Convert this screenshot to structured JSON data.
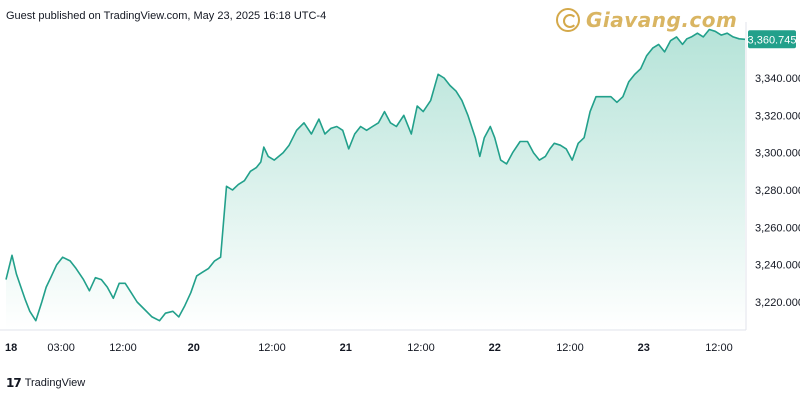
{
  "header": {
    "publisher": "Guest published on TradingView.com, May 23, 2025 16:18 UTC-4"
  },
  "watermark": {
    "brand": "Giavang.com",
    "logo_icon": "giavang-logo-icon"
  },
  "footer": {
    "brand": "TradingView",
    "logo_icon": "tradingview-logo-icon",
    "logo_glyph": "17"
  },
  "colors": {
    "line": "#22a08b",
    "fill_top": "#b5e3d8",
    "fill_bottom": "#ffffff",
    "badge": "#22a08b",
    "axis_text": "#131722",
    "watermark": "#d9b562"
  },
  "chart_data": {
    "type": "area",
    "ylim": [
      3205,
      3370
    ],
    "xlim": [
      0,
      5.0
    ],
    "x_ticks": [
      {
        "x": 0,
        "label": "18"
      },
      {
        "x": 0.37,
        "label": "03:00"
      },
      {
        "x": 0.785,
        "label": "12:00"
      },
      {
        "x": 1.26,
        "label": "20"
      },
      {
        "x": 1.785,
        "label": "12:00"
      },
      {
        "x": 2.28,
        "label": "21"
      },
      {
        "x": 2.785,
        "label": "12:00"
      },
      {
        "x": 3.28,
        "label": "22"
      },
      {
        "x": 3.785,
        "label": "12:00"
      },
      {
        "x": 4.28,
        "label": "23"
      },
      {
        "x": 4.785,
        "label": "12:00"
      }
    ],
    "y_ticks": [
      3220,
      3240,
      3260,
      3280,
      3300,
      3320,
      3340
    ],
    "y_tick_labels": [
      "3,220.000",
      "3,240.000",
      "3,260.000",
      "3,280.000",
      "3,300.000",
      "3,320.000",
      "3,340.000"
    ],
    "last_value": 3360.745,
    "last_value_label": "3,360.745",
    "series": [
      {
        "x": [
          0,
          0.04,
          0.07,
          0.1,
          0.13,
          0.16,
          0.2,
          0.24,
          0.27,
          0.3,
          0.34,
          0.38,
          0.43,
          0.47,
          0.52,
          0.56,
          0.6,
          0.64,
          0.68,
          0.72,
          0.76,
          0.8,
          0.84,
          0.88,
          0.93,
          0.98,
          1.03,
          1.07,
          1.12,
          1.16,
          1.2,
          1.24,
          1.28,
          1.32,
          1.36,
          1.4,
          1.44,
          1.48,
          1.52,
          1.56,
          1.6,
          1.64,
          1.68,
          1.71,
          1.73,
          1.76,
          1.8,
          1.86,
          1.9,
          1.95,
          2.0,
          2.05,
          2.1,
          2.14,
          2.18,
          2.22,
          2.26,
          2.3,
          2.34,
          2.38,
          2.42,
          2.46,
          2.5,
          2.54,
          2.58,
          2.62,
          2.67,
          2.72,
          2.76,
          2.8,
          2.85,
          2.9,
          2.94,
          2.98,
          3.02,
          3.06,
          3.1,
          3.15,
          3.18,
          3.21,
          3.25,
          3.28,
          3.32,
          3.36,
          3.4,
          3.45,
          3.5,
          3.54,
          3.58,
          3.62,
          3.65,
          3.68,
          3.72,
          3.76,
          3.8,
          3.84,
          3.88,
          3.92,
          3.96,
          4.01,
          4.06,
          4.1,
          4.14,
          4.18,
          4.22,
          4.26,
          4.3,
          4.34,
          4.38,
          4.42,
          4.46,
          4.5,
          4.54,
          4.57,
          4.6,
          4.64,
          4.68,
          4.72,
          4.76,
          4.8,
          4.84,
          4.88,
          4.92,
          4.96
        ],
        "y": [
          3232,
          3245,
          3235,
          3228,
          3221,
          3215,
          3210,
          3220,
          3228,
          3233,
          3240,
          3244,
          3242,
          3238,
          3232,
          3226,
          3233,
          3232,
          3228,
          3222,
          3230,
          3230,
          3225,
          3220,
          3216,
          3212,
          3210,
          3214,
          3215,
          3212,
          3218,
          3225,
          3234,
          3236,
          3238,
          3242,
          3244,
          3282,
          3280,
          3283,
          3285,
          3290,
          3292,
          3295,
          3303,
          3298,
          3296,
          3300,
          3304,
          3312,
          3316,
          3310,
          3318,
          3310,
          3313,
          3314,
          3312,
          3302,
          3310,
          3314,
          3312,
          3314,
          3316,
          3322,
          3316,
          3314,
          3320,
          3310,
          3325,
          3322,
          3328,
          3342,
          3340,
          3336,
          3333,
          3328,
          3320,
          3308,
          3298,
          3308,
          3314,
          3308,
          3296,
          3294,
          3300,
          3306,
          3306,
          3300,
          3296,
          3298,
          3302,
          3305,
          3304,
          3302,
          3296,
          3305,
          3308,
          3322,
          3330,
          3330,
          3330,
          3327,
          3330,
          3338,
          3342,
          3345,
          3352,
          3356,
          3358,
          3354,
          3360,
          3362,
          3358,
          3361,
          3362,
          3364,
          3362,
          3366,
          3365,
          3363,
          3364,
          3362,
          3361,
          3360.745
        ]
      }
    ]
  }
}
